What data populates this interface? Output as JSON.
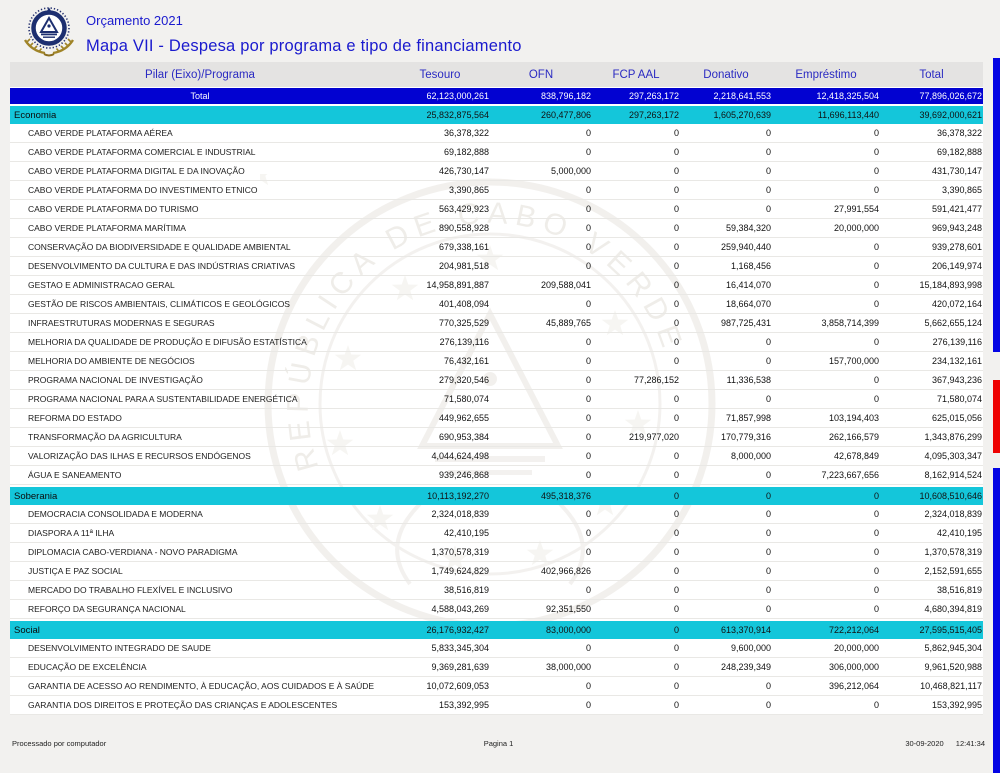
{
  "page": {
    "title_small": "Orçamento 2021",
    "title_main": "Mapa VII - Despesa por programa e tipo de financiamento",
    "footer": {
      "left": "Processado por computador",
      "center": "Pagina 1",
      "date": "30-09-2020",
      "time": "12:41:34"
    }
  },
  "colors": {
    "title_blue": "#1a1ace",
    "header_band": "#e4e3e2",
    "header_text": "#2a2ac2",
    "total_row_bg": "#0202d1",
    "section_row_bg": "#14c6da",
    "edge_bar_blue": "#0404e4",
    "edge_bar_red": "#ee0202"
  },
  "icons": {
    "logo": "cape-verde-coat-of-arms",
    "watermark": "cape-verde-emblem-watermark"
  },
  "table": {
    "columns": [
      "Pilar (Eixo)/Programa",
      "Tesouro",
      "OFN",
      "FCP AAL",
      "Donativo",
      "Empréstimo",
      "Total"
    ],
    "total_row": {
      "label": "Total",
      "values": [
        "62,123,000,261",
        "838,796,182",
        "297,263,172",
        "2,218,641,553",
        "12,418,325,504",
        "77,896,026,672"
      ]
    },
    "sections": [
      {
        "name": "Economia",
        "values": [
          "25,832,875,564",
          "260,477,806",
          "297,263,172",
          "1,605,270,639",
          "11,696,113,440",
          "39,692,000,621"
        ],
        "programs": [
          {
            "name": "CABO VERDE PLATAFORMA AÉREA",
            "values": [
              "36,378,322",
              "0",
              "0",
              "0",
              "0",
              "36,378,322"
            ]
          },
          {
            "name": "CABO VERDE PLATAFORMA COMERCIAL E INDUSTRIAL",
            "values": [
              "69,182,888",
              "0",
              "0",
              "0",
              "0",
              "69,182,888"
            ]
          },
          {
            "name": "CABO VERDE PLATAFORMA DIGITAL E DA INOVAÇÃO",
            "values": [
              "426,730,147",
              "5,000,000",
              "0",
              "0",
              "0",
              "431,730,147"
            ]
          },
          {
            "name": "CABO VERDE PLATAFORMA DO INVESTIMENTO ETNICO",
            "values": [
              "3,390,865",
              "0",
              "0",
              "0",
              "0",
              "3,390,865"
            ]
          },
          {
            "name": "CABO VERDE PLATAFORMA DO TURISMO",
            "values": [
              "563,429,923",
              "0",
              "0",
              "0",
              "27,991,554",
              "591,421,477"
            ]
          },
          {
            "name": "CABO VERDE PLATAFORMA MARÍTIMA",
            "values": [
              "890,558,928",
              "0",
              "0",
              "59,384,320",
              "20,000,000",
              "969,943,248"
            ]
          },
          {
            "name": "CONSERVAÇÃO DA BIODIVERSIDADE E QUALIDADE AMBIENTAL",
            "values": [
              "679,338,161",
              "0",
              "0",
              "259,940,440",
              "0",
              "939,278,601"
            ]
          },
          {
            "name": "DESENVOLVIMENTO DA CULTURA E DAS INDÚSTRIAS CRIATIVAS",
            "values": [
              "204,981,518",
              "0",
              "0",
              "1,168,456",
              "0",
              "206,149,974"
            ]
          },
          {
            "name": "GESTAO E ADMINISTRACAO GERAL",
            "values": [
              "14,958,891,887",
              "209,588,041",
              "0",
              "16,414,070",
              "0",
              "15,184,893,998"
            ]
          },
          {
            "name": "GESTÃO DE RISCOS AMBIENTAIS, CLIMÁTICOS E GEOLÓGICOS",
            "values": [
              "401,408,094",
              "0",
              "0",
              "18,664,070",
              "0",
              "420,072,164"
            ]
          },
          {
            "name": "INFRAESTRUTURAS MODERNAS E SEGURAS",
            "values": [
              "770,325,529",
              "45,889,765",
              "0",
              "987,725,431",
              "3,858,714,399",
              "5,662,655,124"
            ]
          },
          {
            "name": "MELHORIA DA QUALIDADE DE PRODUÇÃO E DIFUSÃO ESTATÍSTICA",
            "values": [
              "276,139,116",
              "0",
              "0",
              "0",
              "0",
              "276,139,116"
            ]
          },
          {
            "name": "MELHORIA DO AMBIENTE DE NEGÓCIOS",
            "values": [
              "76,432,161",
              "0",
              "0",
              "0",
              "157,700,000",
              "234,132,161"
            ]
          },
          {
            "name": "PROGRAMA NACIONAL DE INVESTIGAÇÃO",
            "values": [
              "279,320,546",
              "0",
              "77,286,152",
              "11,336,538",
              "0",
              "367,943,236"
            ]
          },
          {
            "name": "PROGRAMA NACIONAL PARA A SUSTENTABILIDADE ENERGÉTICA",
            "values": [
              "71,580,074",
              "0",
              "0",
              "0",
              "0",
              "71,580,074"
            ]
          },
          {
            "name": "REFORMA DO ESTADO",
            "values": [
              "449,962,655",
              "0",
              "0",
              "71,857,998",
              "103,194,403",
              "625,015,056"
            ]
          },
          {
            "name": "TRANSFORMAÇÃO DA AGRICULTURA",
            "values": [
              "690,953,384",
              "0",
              "219,977,020",
              "170,779,316",
              "262,166,579",
              "1,343,876,299"
            ]
          },
          {
            "name": "VALORIZAÇÃO DAS ILHAS E RECURSOS ENDÓGENOS",
            "values": [
              "4,044,624,498",
              "0",
              "0",
              "8,000,000",
              "42,678,849",
              "4,095,303,347"
            ]
          },
          {
            "name": "ÁGUA E SANEAMENTO",
            "values": [
              "939,246,868",
              "0",
              "0",
              "0",
              "7,223,667,656",
              "8,162,914,524"
            ]
          }
        ]
      },
      {
        "name": "Soberania",
        "values": [
          "10,113,192,270",
          "495,318,376",
          "0",
          "0",
          "0",
          "10,608,510,646"
        ],
        "programs": [
          {
            "name": "DEMOCRACIA CONSOLIDADA E MODERNA",
            "values": [
              "2,324,018,839",
              "0",
              "0",
              "0",
              "0",
              "2,324,018,839"
            ]
          },
          {
            "name": "DIASPORA A 11ª ILHA",
            "values": [
              "42,410,195",
              "0",
              "0",
              "0",
              "0",
              "42,410,195"
            ]
          },
          {
            "name": "DIPLOMACIA CABO-VERDIANA - NOVO PARADIGMA",
            "values": [
              "1,370,578,319",
              "0",
              "0",
              "0",
              "0",
              "1,370,578,319"
            ]
          },
          {
            "name": "JUSTIÇA E PAZ SOCIAL",
            "values": [
              "1,749,624,829",
              "402,966,826",
              "0",
              "0",
              "0",
              "2,152,591,655"
            ]
          },
          {
            "name": "MERCADO DO TRABALHO FLEXÍVEL E INCLUSIVO",
            "values": [
              "38,516,819",
              "0",
              "0",
              "0",
              "0",
              "38,516,819"
            ]
          },
          {
            "name": "REFORÇO DA SEGURANÇA NACIONAL",
            "values": [
              "4,588,043,269",
              "92,351,550",
              "0",
              "0",
              "0",
              "4,680,394,819"
            ]
          }
        ]
      },
      {
        "name": "Social",
        "values": [
          "26,176,932,427",
          "83,000,000",
          "0",
          "613,370,914",
          "722,212,064",
          "27,595,515,405"
        ],
        "programs": [
          {
            "name": "DESENVOLVIMENTO INTEGRADO DE SAUDE",
            "values": [
              "5,833,345,304",
              "0",
              "0",
              "9,600,000",
              "20,000,000",
              "5,862,945,304"
            ]
          },
          {
            "name": "EDUCAÇÃO DE EXCELÊNCIA",
            "values": [
              "9,369,281,639",
              "38,000,000",
              "0",
              "248,239,349",
              "306,000,000",
              "9,961,520,988"
            ]
          },
          {
            "name": "GARANTIA DE ACESSO AO RENDIMENTO, À EDUCAÇÃO, AOS CUIDADOS E À SAÚDE",
            "values": [
              "10,072,609,053",
              "0",
              "0",
              "0",
              "396,212,064",
              "10,468,821,117"
            ]
          },
          {
            "name": "GARANTIA DOS DIREITOS E PROTEÇÃO DAS CRIANÇAS E ADOLESCENTES",
            "values": [
              "153,392,995",
              "0",
              "0",
              "0",
              "0",
              "153,392,995"
            ]
          }
        ]
      }
    ]
  }
}
